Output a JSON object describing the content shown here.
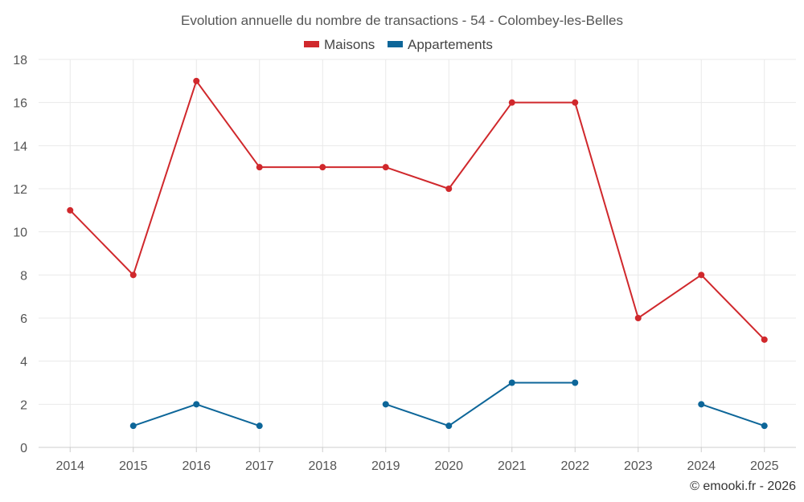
{
  "chart_data": {
    "type": "line",
    "title": "Evolution annuelle du nombre de transactions - 54 - Colombey-les-Belles",
    "xlabel": "",
    "ylabel": "",
    "categories": [
      "2014",
      "2015",
      "2016",
      "2017",
      "2018",
      "2019",
      "2020",
      "2021",
      "2022",
      "2023",
      "2024",
      "2025"
    ],
    "ylim": [
      0,
      18
    ],
    "yticks": [
      0,
      2,
      4,
      6,
      8,
      10,
      12,
      14,
      16,
      18
    ],
    "grid": true,
    "legend_position": "top-center",
    "series": [
      {
        "name": "Maisons",
        "color": "#d0282c",
        "values": [
          11,
          8,
          17,
          13,
          13,
          13,
          12,
          16,
          16,
          6,
          8,
          5
        ]
      },
      {
        "name": "Appartements",
        "color": "#0d6699",
        "values": [
          null,
          1,
          2,
          1,
          null,
          2,
          1,
          3,
          3,
          null,
          2,
          1
        ]
      }
    ]
  },
  "credit": "© emooki.fr - 2026"
}
